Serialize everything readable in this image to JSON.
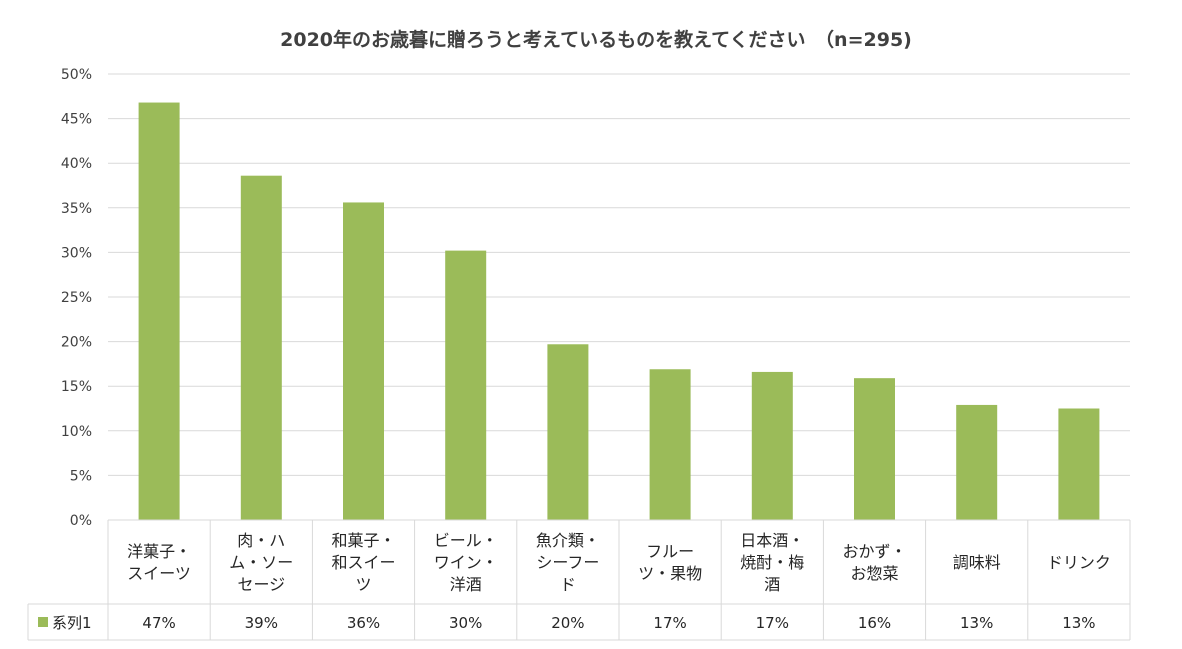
{
  "chart_data": {
    "type": "bar",
    "title": "2020年のお歳暮に贈ろうと考えているものを教えてください　（n=295)",
    "categories": [
      [
        "洋菓子・",
        "スイーツ"
      ],
      [
        "肉・ハ",
        "ム・ソー",
        "セージ"
      ],
      [
        "和菓子・",
        "和スイー",
        "ツ"
      ],
      [
        "ビール・",
        "ワイン・",
        "洋酒"
      ],
      [
        "魚介類・",
        "シーフー",
        "ド"
      ],
      [
        "フルー",
        "ツ・果物"
      ],
      [
        "日本酒・",
        "焼酎・梅",
        "酒"
      ],
      [
        "おかず・",
        "お惣菜"
      ],
      [
        "調味料"
      ],
      [
        "ドリンク"
      ]
    ],
    "series": [
      {
        "name": "系列1",
        "values": [
          46.8,
          38.6,
          35.6,
          30.2,
          19.7,
          16.9,
          16.6,
          15.9,
          12.9,
          12.5
        ],
        "labels": [
          "47%",
          "39%",
          "36%",
          "30%",
          "20%",
          "17%",
          "17%",
          "16%",
          "13%",
          "13%"
        ],
        "color": "#9bbb59"
      }
    ],
    "ylim": [
      0,
      50
    ],
    "yticks": [
      "0%",
      "5%",
      "10%",
      "15%",
      "20%",
      "25%",
      "30%",
      "35%",
      "40%",
      "45%",
      "50%"
    ],
    "grid": true,
    "legend": "data-table-left",
    "xlabel": "",
    "ylabel": ""
  }
}
